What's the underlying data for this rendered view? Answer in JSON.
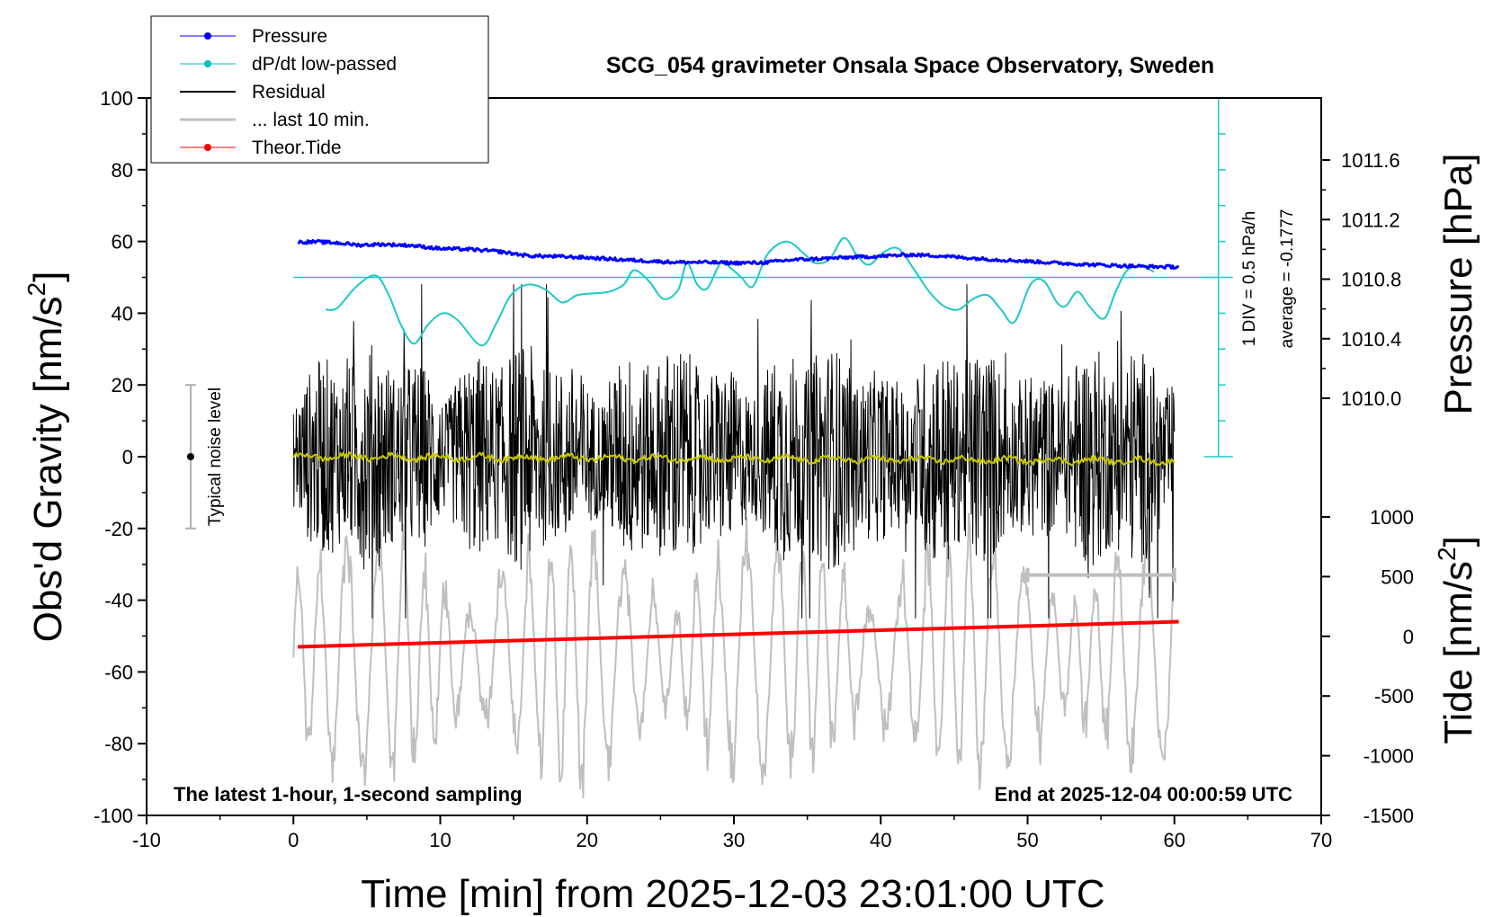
{
  "chart_data": {
    "type": "line",
    "title": "SCG_054 gravimeter Onsala Space Observatory, Sweden",
    "xlabel": "Time [min] from 2025-12-03 23:01:00 UTC",
    "ylabel_left_prefix": "Obs'd Gravity [nm/s",
    "ylabel_left_sup": "2",
    "ylabel_left_suffix": "]",
    "ylabel_right_top": "Pressure [hPa]",
    "ylabel_right_bottom_prefix": "Tide [nm/s",
    "ylabel_right_bottom_sup": "2",
    "ylabel_right_bottom_suffix": "]",
    "xlim": [
      -10,
      70
    ],
    "ylim": [
      -100,
      100
    ],
    "xticks": [
      -10,
      0,
      10,
      20,
      30,
      40,
      50,
      60,
      70
    ],
    "yticks": [
      -100,
      -80,
      -60,
      -40,
      -20,
      0,
      20,
      40,
      60,
      80,
      100
    ],
    "pressure_ticks": [
      "1010.0",
      "1010.4",
      "1010.8",
      "1011.2",
      "1011.6"
    ],
    "tide_ticks": [
      "-1500",
      "-1000",
      "-500",
      "0",
      "500",
      "1000"
    ],
    "legend": {
      "placement": "top-left",
      "entries": [
        {
          "label": "Pressure",
          "color": "#0000ff",
          "marker": true
        },
        {
          "label": "dP/dt low-passed",
          "color": "#00c0c0",
          "marker": true
        },
        {
          "label": "Residual",
          "color": "#000000",
          "marker": false
        },
        {
          "label": "... last 10 min.",
          "color": "#bfbfbf",
          "marker": false
        },
        {
          "label": "Theor.Tide",
          "color": "#ff0000",
          "marker": true
        }
      ]
    },
    "annotations": {
      "bottom_left": "The latest 1-hour, 1-second sampling",
      "bottom_right": "End at 2025-12-04 00:00:59 UTC",
      "noise_label": "Typical noise level",
      "div_label": "1 DIV = 0.5 hPa/h",
      "avg_label": "average = -0.1777"
    },
    "noise_bar": {
      "x": -7,
      "center": 0,
      "range": [
        -20,
        20
      ]
    },
    "dpdt_scale": {
      "x": 63,
      "range": [
        0,
        100
      ],
      "baseline": 50
    },
    "last10_scale": {
      "x_range": [
        50,
        60
      ],
      "y": -33
    },
    "series": [
      {
        "name": "Pressure",
        "color": "#0000ff",
        "x": [
          0.3,
          1.5,
          3,
          4.5,
          6,
          8,
          10,
          12,
          14,
          16,
          18,
          20,
          22,
          24,
          26,
          28,
          30,
          32,
          34,
          36,
          38,
          40,
          42,
          44,
          46,
          48,
          50,
          52,
          54,
          56,
          58,
          60.3
        ],
        "y": [
          59.8,
          59.9,
          59.6,
          59.0,
          59.2,
          58.9,
          58.0,
          57.8,
          57.2,
          56.0,
          55.8,
          55.5,
          55.0,
          54.6,
          54.2,
          54.2,
          54.0,
          54.1,
          54.9,
          55.2,
          55.6,
          55.9,
          56.3,
          56.0,
          55.4,
          54.9,
          54.5,
          54.0,
          53.6,
          53.3,
          53.0,
          52.9
        ]
      },
      {
        "name": "dP/dt low-passed",
        "color": "#20c8c8",
        "x": [
          2.2,
          3,
          4.3,
          5.6,
          6.5,
          7.3,
          8.2,
          9.2,
          10.2,
          11.2,
          12.8,
          13.8,
          14.8,
          16,
          17.2,
          18.3,
          19.3,
          20.3,
          21.5,
          22.5,
          23.2,
          24.2,
          25.2,
          26.2,
          26.8,
          27.5,
          28.2,
          29.1,
          29.8,
          30.5,
          31.3,
          32.3,
          33.6,
          34.8,
          35.5,
          36.5,
          37.5,
          38.4,
          39.2,
          40.2,
          41.2,
          42.3,
          43.3,
          44.3,
          45.3,
          46.3,
          47.3,
          48.2,
          49.1,
          50.2,
          51.1,
          52,
          52.6,
          53.4,
          54.2,
          55.2,
          56,
          56.8,
          57.8,
          58.6
        ],
        "y": [
          41,
          41.5,
          47.5,
          50.5,
          45,
          37,
          31.5,
          37,
          40,
          38,
          31,
          37,
          45,
          48,
          46.5,
          43,
          45,
          45.5,
          46,
          48,
          52,
          49,
          44,
          46.5,
          54,
          48,
          47,
          54,
          52.5,
          50,
          47.5,
          56.5,
          60,
          56.5,
          54,
          55,
          61,
          56,
          53.5,
          57,
          58,
          52,
          46,
          42,
          41,
          44,
          45,
          41,
          37.5,
          48,
          49,
          43,
          42,
          46,
          42,
          38.5,
          46,
          52,
          53,
          51.5
        ]
      },
      {
        "name": "Residual",
        "color": "#000000",
        "x": [
          0,
          60
        ],
        "y": [
          0,
          0
        ]
      },
      {
        "name": "... last 10 min.",
        "color": "#bfbfbf",
        "x": [
          0,
          60
        ],
        "y": [
          -56,
          -56
        ]
      },
      {
        "name": "Theor.Tide",
        "color": "#ff0000",
        "x": [
          0.3,
          60.3
        ],
        "y": [
          -53,
          -46
        ]
      }
    ],
    "colors": {
      "residual_smooth": "#c8c800",
      "frame": "#000000",
      "background": "#ffffff"
    }
  }
}
